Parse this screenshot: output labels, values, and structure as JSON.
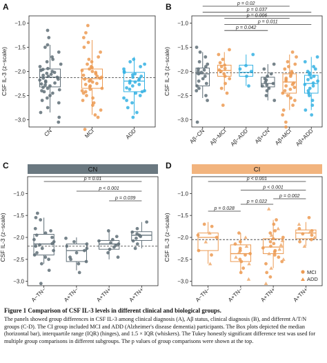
{
  "figure": {
    "caption_title": "Figure 1 Comparison of CSF IL-3 levels in different clinical and biological groups.",
    "caption_body": "The panels showed group differences in CSF IL-3 among clinical diagnosis (A), Aβ status, clinical diagnosis (B), and different A/T/N groups (C-D). The CI group included MCI and ADD (Alzheimer's disease dementia) participants. The Box plots depicted the median (horizontal bar), interquartile range (IQR) (hinges), and 1.5 × IQR (whiskers). The Tukey honestly significant difference test was used for multiple group comparisons in different subgroups. The p values of group comparisons were shown at the top."
  },
  "colors": {
    "CN": "#5f6e77",
    "MCI": "#ec9a52",
    "ADD": "#35b2e3",
    "strip_CN": "#6a7880",
    "strip_CI": "#f2b47e"
  },
  "chart_data": [
    {
      "panel": "A",
      "type": "box",
      "ylabel": "CSF IL-3 (z−scale)",
      "ylim": [
        -3.15,
        -0.85
      ],
      "yticks": [
        -3.0,
        -2.5,
        -2.0,
        -1.5,
        -1.0
      ],
      "ytick_labels": [
        "−3.0",
        "−2.5",
        "−2.0",
        "−1.5",
        "−1.0"
      ],
      "categories": [
        "CN",
        "MCI",
        "ADD"
      ],
      "colors": [
        "CN",
        "MCI",
        "ADD"
      ],
      "reference_line": -2.13,
      "boxes": [
        {
          "whislo": -2.85,
          "q1": -2.32,
          "med": -2.12,
          "q3": -1.95,
          "whishi": -1.45
        },
        {
          "whislo": -2.9,
          "q1": -2.35,
          "med": -2.15,
          "q3": -1.95,
          "whishi": -1.35
        },
        {
          "whislo": -2.9,
          "q1": -2.42,
          "med": -2.2,
          "q3": -2.02,
          "whishi": -1.7
        }
      ],
      "points": [
        [
          -3.05,
          -2.95,
          -2.85,
          -2.75,
          -2.65,
          -2.6,
          -2.55,
          -2.5,
          -2.45,
          -2.42,
          -2.4,
          -2.38,
          -2.35,
          -2.33,
          -2.3,
          -2.28,
          -2.26,
          -2.24,
          -2.22,
          -2.2,
          -2.18,
          -2.16,
          -2.14,
          -2.12,
          -2.1,
          -2.08,
          -2.06,
          -2.04,
          -2.02,
          -2.0,
          -1.98,
          -1.96,
          -1.94,
          -1.9,
          -1.85,
          -1.8,
          -1.75,
          -1.7,
          -1.6,
          -1.5,
          -1.45,
          -1.3,
          -1.15
        ],
        [
          -3.2,
          -2.95,
          -2.9,
          -2.8,
          -2.7,
          -2.65,
          -2.6,
          -2.55,
          -2.5,
          -2.45,
          -2.42,
          -2.4,
          -2.37,
          -2.35,
          -2.32,
          -2.3,
          -2.27,
          -2.25,
          -2.22,
          -2.2,
          -2.18,
          -2.16,
          -2.14,
          -2.12,
          -2.1,
          -2.08,
          -2.05,
          -2.02,
          -2.0,
          -1.98,
          -1.95,
          -1.92,
          -1.9,
          -1.85,
          -1.8,
          -1.75,
          -1.7,
          -1.6,
          -1.5,
          -1.4,
          -1.3,
          -1.2,
          -1.05
        ],
        [
          -2.95,
          -2.85,
          -2.75,
          -2.65,
          -2.6,
          -2.55,
          -2.5,
          -2.45,
          -2.42,
          -2.4,
          -2.37,
          -2.34,
          -2.3,
          -2.27,
          -2.24,
          -2.22,
          -2.2,
          -2.18,
          -2.15,
          -2.12,
          -2.1,
          -2.07,
          -2.05,
          -2.02,
          -2.0,
          -1.95,
          -1.9,
          -1.85,
          -1.8,
          -1.75
        ]
      ],
      "brackets": []
    },
    {
      "panel": "B",
      "type": "box",
      "ylabel": "CSF IL-3 (z−scale)",
      "ylim": [
        -3.15,
        -0.85
      ],
      "yticks": [
        -3.0,
        -2.5,
        -2.0,
        -1.5,
        -1.0
      ],
      "ytick_labels": [
        "−3.0",
        "−2.5",
        "−2.0",
        "−1.5",
        "−1.0"
      ],
      "categories": [
        "Aβ−CN",
        "Aβ−MCI",
        "Aβ−ADD",
        "Aβ+CN",
        "Aβ+MCI",
        "Aβ+ADD"
      ],
      "colors": [
        "CN",
        "MCI",
        "ADD",
        "CN",
        "MCI",
        "ADD"
      ],
      "reference_line": -2.03,
      "boxes": [
        {
          "whislo": -2.55,
          "q1": -2.3,
          "med": -2.05,
          "q3": -1.93,
          "whishi": -1.6
        },
        {
          "whislo": -2.4,
          "q1": -2.1,
          "med": -1.98,
          "q3": -1.87,
          "whishi": -1.6
        },
        {
          "whislo": -2.3,
          "q1": -2.1,
          "med": -2.02,
          "q3": -1.87,
          "whishi": -1.65
        },
        {
          "whislo": -2.6,
          "q1": -2.32,
          "med": -2.25,
          "q3": -2.12,
          "whishi": -1.85
        },
        {
          "whislo": -2.8,
          "q1": -2.45,
          "med": -2.22,
          "q3": -2.05,
          "whishi": -1.65
        },
        {
          "whislo": -2.8,
          "q1": -2.45,
          "med": -2.25,
          "q3": -2.08,
          "whishi": -1.7
        }
      ],
      "points": [
        [
          -3.05,
          -2.6,
          -2.5,
          -2.4,
          -2.35,
          -2.3,
          -2.25,
          -2.2,
          -2.15,
          -2.1,
          -2.05,
          -2.02,
          -2.0,
          -1.97,
          -1.95,
          -1.9,
          -1.85,
          -1.8,
          -1.7,
          -1.6,
          -1.5
        ],
        [
          -2.7,
          -2.45,
          -2.35,
          -2.25,
          -2.15,
          -2.1,
          -2.05,
          -2.0,
          -1.97,
          -1.94,
          -1.9,
          -1.87,
          -1.82,
          -1.75,
          -1.65,
          -1.55
        ],
        [
          -2.3,
          -2.1,
          -2.0,
          -1.95,
          -1.88,
          -1.65
        ],
        [
          -2.6,
          -2.5,
          -2.4,
          -2.35,
          -2.3,
          -2.28,
          -2.25,
          -2.22,
          -2.18,
          -2.15,
          -2.1,
          -2.05,
          -1.95,
          -1.85
        ],
        [
          -3.15,
          -3.05,
          -2.9,
          -2.8,
          -2.7,
          -2.6,
          -2.55,
          -2.5,
          -2.45,
          -2.4,
          -2.37,
          -2.33,
          -2.3,
          -2.27,
          -2.24,
          -2.2,
          -2.17,
          -2.14,
          -2.1,
          -2.07,
          -2.03,
          -2.0,
          -1.95,
          -1.9,
          -1.85,
          -1.8,
          -1.7,
          -1.6
        ],
        [
          -2.9,
          -2.8,
          -2.7,
          -2.6,
          -2.5,
          -2.45,
          -2.4,
          -2.35,
          -2.3,
          -2.27,
          -2.24,
          -2.2,
          -2.17,
          -2.13,
          -2.1,
          -2.07,
          -2.03,
          -2.0,
          -1.95,
          -1.9,
          -1.8,
          -1.7
        ]
      ],
      "brackets": [
        {
          "from": 0,
          "to": 4,
          "label": "p = 0.02"
        },
        {
          "from": 0,
          "to": 5,
          "label": "p = 0.037"
        },
        {
          "from": 1,
          "to": 4,
          "label": "p = 0.006"
        },
        {
          "from": 1,
          "to": 5,
          "label": "p = 0.011"
        },
        {
          "from": 1,
          "to": 3,
          "label": "p = 0.042"
        }
      ]
    },
    {
      "panel": "C",
      "type": "box",
      "strip": "CN",
      "strip_color": "CN",
      "ylabel": "CSF IL-3 (z−scale)",
      "ylim": [
        -3.1,
        -0.9
      ],
      "yticks": [
        -3.0,
        -2.5,
        -2.0,
        -1.5,
        -1.0
      ],
      "ytick_labels": [
        "−3.0",
        "−2.5",
        "−2.0",
        "−1.5",
        "−1.0"
      ],
      "categories": [
        "A−TN−",
        "A+TN−",
        "A+TN+",
        "A+TN+"
      ],
      "colors": [
        "CN",
        "CN",
        "CN",
        "CN"
      ],
      "reference_line": -2.2,
      "boxes": [
        {
          "whislo": -2.6,
          "q1": -2.4,
          "med": -2.15,
          "q3": -1.93,
          "whishi": -1.55
        },
        {
          "whislo": -2.75,
          "q1": -2.55,
          "med": -2.3,
          "q3": -2.15,
          "whishi": -2.0
        },
        {
          "whislo": -2.5,
          "q1": -2.27,
          "med": -2.15,
          "q3": -2.07,
          "whishi": -1.85
        },
        {
          "whislo": -2.25,
          "q1": -2.07,
          "med": -1.95,
          "q3": -1.87,
          "whishi": -1.65
        }
      ],
      "points": [
        [
          -3.05,
          -2.75,
          -2.6,
          -2.5,
          -2.45,
          -2.4,
          -2.35,
          -2.3,
          -2.25,
          -2.2,
          -2.17,
          -2.14,
          -2.1,
          -2.05,
          -2.0,
          -1.95,
          -1.9,
          -1.85,
          -1.8,
          -1.6,
          -1.55,
          -1.45
        ],
        [
          -2.8,
          -2.6,
          -2.55,
          -2.5,
          -2.45,
          -2.35,
          -2.3,
          -2.25,
          -2.2,
          -2.15,
          -2.1,
          -2.02
        ],
        [
          -2.45,
          -2.35,
          -2.27,
          -2.22,
          -2.18,
          -2.15,
          -2.12,
          -2.08,
          -2.05,
          -1.98,
          -1.85
        ],
        [
          -2.25,
          -2.15,
          -2.08,
          -2.02,
          -1.98,
          -1.95,
          -1.92,
          -1.88,
          -1.8,
          -1.65
        ]
      ],
      "brackets": [
        {
          "from": 0,
          "to": 3,
          "label": "p = 0.01"
        },
        {
          "from": 1,
          "to": 3,
          "label": "p < 0.001"
        },
        {
          "from": 2,
          "to": 3,
          "label": "p = 0.039"
        }
      ]
    },
    {
      "panel": "D",
      "type": "box",
      "strip": "CI",
      "strip_color": "MCI",
      "ylabel": "CSF IL-3 (z−scale)",
      "ylim": [
        -3.1,
        -0.9
      ],
      "yticks": [
        -3.0,
        -2.5,
        -2.0,
        -1.5,
        -1.0
      ],
      "ytick_labels": [
        "−3.0",
        "−2.5",
        "−2.0",
        "−1.5",
        "−1.0"
      ],
      "categories": [
        "A−TN−",
        "A+TN−",
        "A+TN+",
        "A+TN+"
      ],
      "colors": [
        "MCI",
        "MCI",
        "MCI",
        "MCI"
      ],
      "reference_line": -2.05,
      "legend": [
        "MCI",
        "ADD"
      ],
      "legend_position": "bottom-right",
      "boxes": [
        {
          "whislo": -2.6,
          "q1": -2.3,
          "med": -2.0,
          "q3": -1.9,
          "whishi": -1.65
        },
        {
          "whislo": -2.8,
          "q1": -2.55,
          "med": -2.37,
          "q3": -2.17,
          "whishi": -1.9
        },
        {
          "whislo": -2.7,
          "q1": -2.37,
          "med": -2.22,
          "q3": -2.03,
          "whishi": -1.6
        },
        {
          "whislo": -2.2,
          "q1": -2.03,
          "med": -1.9,
          "q3": -1.83,
          "whishi": -1.65
        }
      ],
      "points": [
        [
          -2.6,
          -2.4,
          -2.3,
          -2.1,
          -2.0,
          -1.95,
          -1.9,
          -1.75,
          -1.7
        ],
        [
          -2.95,
          -2.8,
          -2.7,
          -2.6,
          -2.55,
          -2.5,
          -2.45,
          -2.4,
          -2.37,
          -2.33,
          -2.3,
          -2.25,
          -2.2,
          -2.15,
          -2.1,
          -2.0,
          -1.9
        ],
        [
          -3.05,
          -2.9,
          -2.8,
          -2.7,
          -2.6,
          -2.55,
          -2.5,
          -2.45,
          -2.4,
          -2.37,
          -2.33,
          -2.3,
          -2.27,
          -2.24,
          -2.2,
          -2.17,
          -2.14,
          -2.1,
          -2.07,
          -2.03,
          -2.0,
          -1.95,
          -1.9,
          -1.85,
          -1.8,
          -1.7,
          -1.6,
          -1.35
        ],
        [
          -2.2,
          -2.1,
          -2.05,
          -2.0,
          -1.95,
          -1.92,
          -1.88,
          -1.85,
          -1.8,
          -1.7,
          -1.55
        ]
      ],
      "brackets": [
        {
          "from": 0,
          "to": 3,
          "label": "p < 0.001"
        },
        {
          "from": 1,
          "to": 3,
          "label": "p < 0.001"
        },
        {
          "from": 2,
          "to": 3,
          "label": "p = 0.002"
        },
        {
          "from": 1,
          "to": 2,
          "label": "p = 0.022"
        },
        {
          "from": 0,
          "to": 1,
          "label": "p = 0.028"
        }
      ]
    }
  ]
}
